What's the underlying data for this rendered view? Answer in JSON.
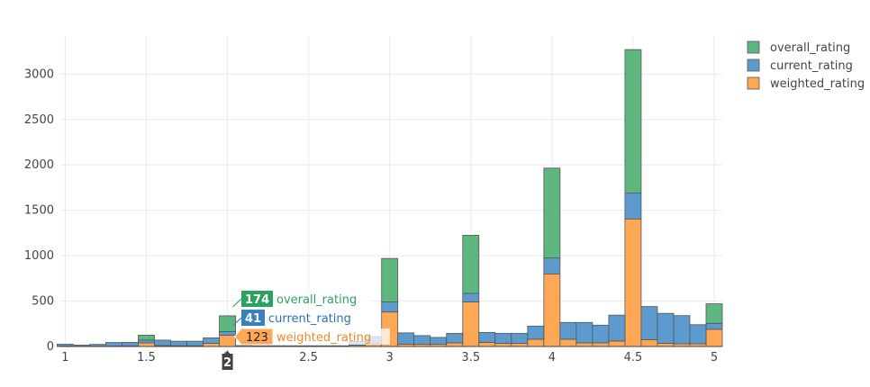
{
  "chart_data": {
    "type": "bar",
    "barmode": "stack",
    "title": "",
    "xlabel": "",
    "ylabel": "",
    "xlim": [
      0.97,
      5.05
    ],
    "ylim": [
      0,
      3420
    ],
    "x_ticks": [
      1,
      1.5,
      2,
      2.5,
      3,
      3.5,
      4,
      4.5,
      5
    ],
    "y_ticks": [
      0,
      500,
      1000,
      1500,
      2000,
      2500,
      3000
    ],
    "grid": true,
    "legend_position": "top-right",
    "bin_width": 0.1,
    "bin_starts": [
      0.95,
      1.05,
      1.15,
      1.25,
      1.35,
      1.45,
      1.55,
      1.65,
      1.75,
      1.85,
      1.95,
      2.05,
      2.15,
      2.25,
      2.35,
      2.45,
      2.55,
      2.65,
      2.75,
      2.85,
      2.95,
      3.05,
      3.15,
      3.25,
      3.35,
      3.45,
      3.55,
      3.65,
      3.75,
      3.85,
      3.95,
      4.05,
      4.15,
      4.25,
      4.35,
      4.45,
      4.55,
      4.65,
      4.75,
      4.85,
      4.95
    ],
    "series": [
      {
        "name": "weighted_rating",
        "color": "#fea754",
        "values": [
          5,
          3,
          3,
          4,
          5,
          40,
          10,
          8,
          8,
          35,
          123,
          10,
          8,
          8,
          8,
          8,
          8,
          8,
          15,
          30,
          380,
          25,
          25,
          25,
          40,
          490,
          45,
          35,
          35,
          80,
          800,
          80,
          40,
          40,
          60,
          1405,
          75,
          35,
          30,
          30,
          190
        ]
      },
      {
        "name": "current_rating",
        "color": "#5d9bcf",
        "values": [
          20,
          12,
          20,
          40,
          40,
          30,
          60,
          50,
          50,
          60,
          41,
          0,
          0,
          0,
          0,
          0,
          0,
          0,
          40,
          80,
          110,
          125,
          95,
          75,
          105,
          95,
          110,
          110,
          110,
          145,
          175,
          185,
          225,
          195,
          285,
          285,
          365,
          330,
          310,
          210,
          65
        ]
      },
      {
        "name": "overall_rating",
        "color": "#5db77f",
        "values": [
          0,
          0,
          0,
          0,
          0,
          55,
          0,
          0,
          0,
          0,
          174,
          0,
          0,
          0,
          0,
          0,
          0,
          0,
          0,
          0,
          480,
          0,
          0,
          0,
          0,
          640,
          0,
          0,
          0,
          0,
          990,
          0,
          0,
          0,
          0,
          1580,
          0,
          0,
          0,
          0,
          215
        ]
      }
    ],
    "hover": {
      "x_value": "2",
      "items": [
        {
          "value": "174",
          "name": "overall_rating",
          "color": "#2ca25f",
          "text_color": "#2ca25f"
        },
        {
          "value": "41",
          "name": "current_rating",
          "color": "#3a7fc0",
          "text_color": "#2f6fb0"
        },
        {
          "value": "123",
          "name": "weighted_rating",
          "color": "#fea754",
          "text_color": "#f08a24"
        }
      ]
    }
  }
}
